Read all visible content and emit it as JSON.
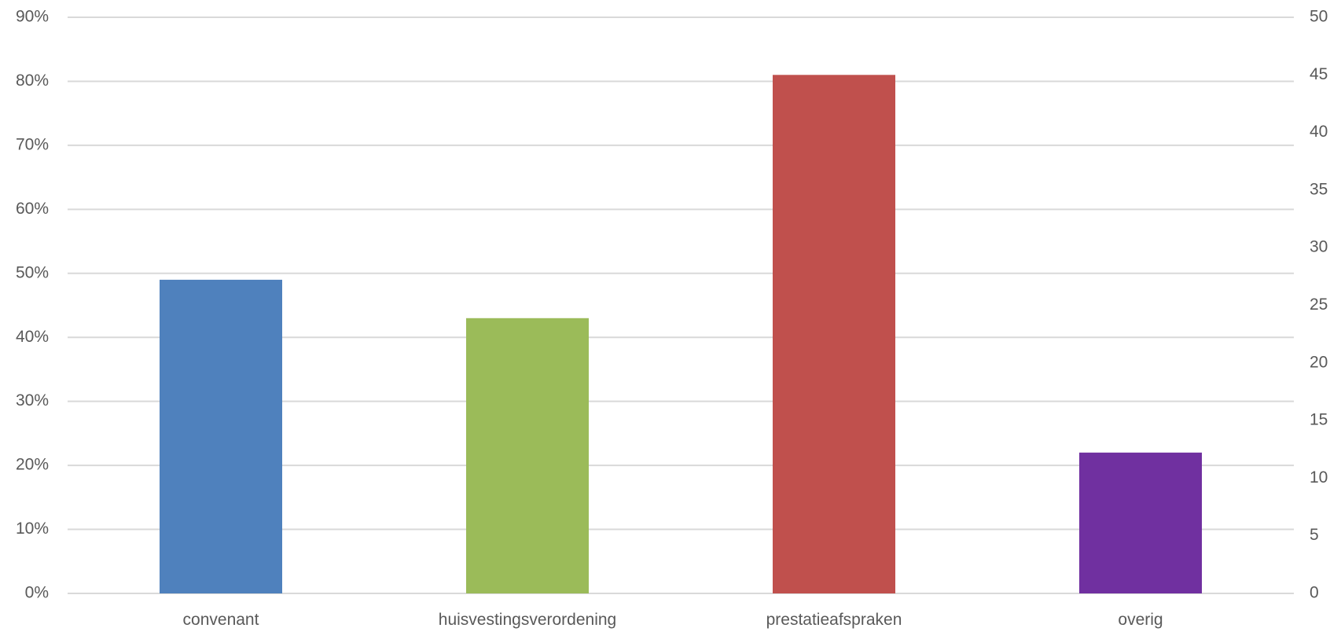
{
  "chart_data": {
    "type": "bar",
    "title": "",
    "xlabel": "",
    "ylabel": "",
    "categories": [
      "convenant",
      "huisvestingsverordening",
      "prestatieafspraken",
      "overig"
    ],
    "values": [
      0.49,
      0.43,
      0.81,
      0.22
    ],
    "value_format": "percent",
    "bar_colors": [
      "#4f81bd",
      "#9bbb59",
      "#c0504d",
      "#7030a0"
    ],
    "ylim": [
      0,
      0.9
    ],
    "y_ticks": [
      0,
      0.1,
      0.2,
      0.3,
      0.4,
      0.5,
      0.6,
      0.7,
      0.8,
      0.9
    ],
    "y_tick_labels": [
      "0%",
      "10%",
      "20%",
      "30%",
      "40%",
      "50%",
      "60%",
      "70%",
      "80%",
      "90%"
    ],
    "y2lim": [
      0,
      50
    ],
    "y2_ticks": [
      0,
      5,
      10,
      15,
      20,
      25,
      30,
      35,
      40,
      45,
      50
    ],
    "y2_tick_labels": [
      "0",
      "5",
      "10",
      "15",
      "20",
      "25",
      "30",
      "35",
      "40",
      "45",
      "50"
    ],
    "grid": true,
    "grid_color": "#d9d9d9",
    "legend": "none"
  }
}
